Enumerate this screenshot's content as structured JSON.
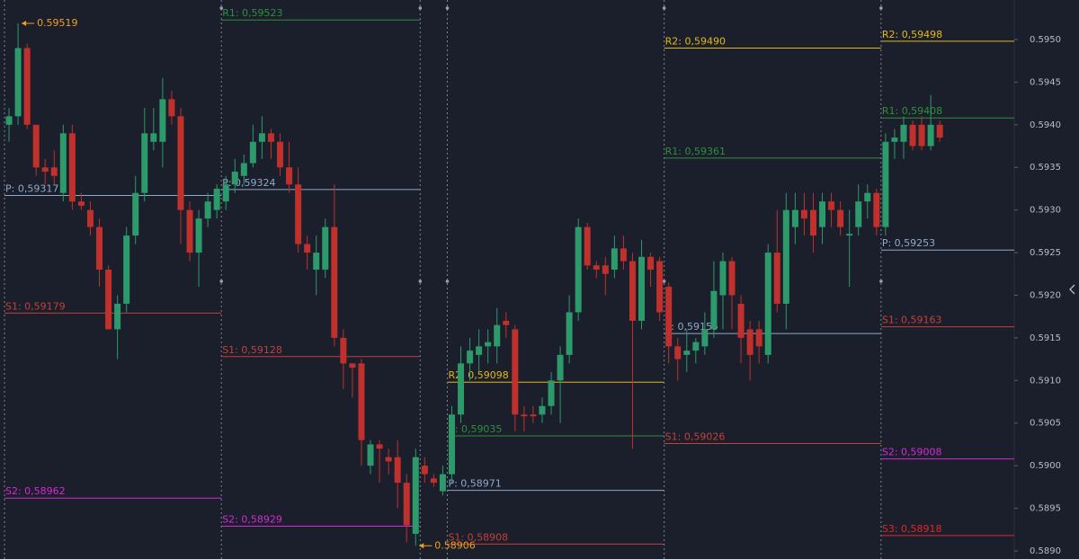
{
  "chart_data": {
    "type": "candlestick",
    "up_color": "#2c9a6a",
    "down_color": "#c0302c",
    "ylim": [
      0.588905,
      0.595464
    ],
    "yticks": [
      {
        "value": 0.595,
        "label": "0.5950"
      },
      {
        "value": 0.5945,
        "label": "0.5945"
      },
      {
        "value": 0.594,
        "label": "0.5940"
      },
      {
        "value": 0.5935,
        "label": "0.5935"
      },
      {
        "value": 0.593,
        "label": "0.5930"
      },
      {
        "value": 0.5925,
        "label": "0.5925"
      },
      {
        "value": 0.592,
        "label": "0.5920"
      },
      {
        "value": 0.5915,
        "label": "0.5915"
      },
      {
        "value": 0.591,
        "label": "0.5910"
      },
      {
        "value": 0.5905,
        "label": "0.5905"
      },
      {
        "value": 0.59,
        "label": "0.5900"
      },
      {
        "value": 0.5895,
        "label": "0.5895"
      },
      {
        "value": 0.589,
        "label": "0.5890"
      }
    ],
    "price_markers": [
      {
        "label": "0.59519",
        "value": 0.59519
      },
      {
        "label": "0.58906",
        "value": 0.58906
      }
    ],
    "sessions": [
      {
        "levels": [
          {
            "label": "P: 0,59317",
            "value": 0.59317,
            "color": "#8fa9c9"
          },
          {
            "label": "S1: 0,59179",
            "value": 0.59179,
            "color": "#c2413a"
          },
          {
            "label": "S2: 0,58962",
            "value": 0.58962,
            "color": "#d42ad4"
          }
        ],
        "candles": [
          [
            0.594,
            0.5942,
            0.5938,
            0.5941
          ],
          [
            0.5941,
            0.59519,
            0.594,
            0.5949
          ],
          [
            0.5949,
            0.59495,
            0.59395,
            0.594
          ],
          [
            0.594,
            0.594,
            0.5934,
            0.5935
          ],
          [
            0.5935,
            0.5936,
            0.5933,
            0.59345
          ],
          [
            0.5935,
            0.5937,
            0.5933,
            0.5934
          ],
          [
            0.5932,
            0.594,
            0.5931,
            0.5939
          ],
          [
            0.5939,
            0.594,
            0.593,
            0.5931
          ],
          [
            0.5931,
            0.5932,
            0.593,
            0.59305
          ],
          [
            0.593,
            0.5931,
            0.5927,
            0.5928
          ],
          [
            0.5928,
            0.5929,
            0.5921,
            0.5923
          ],
          [
            0.5923,
            0.59235,
            0.5916,
            0.5916
          ],
          [
            0.5916,
            0.592,
            0.59125,
            0.5919
          ],
          [
            0.5919,
            0.5928,
            0.5918,
            0.5927
          ],
          [
            0.5927,
            0.5934,
            0.5926,
            0.5932
          ],
          [
            0.5932,
            0.5942,
            0.5931,
            0.5939
          ],
          [
            0.5938,
            0.5942,
            0.5937,
            0.5939
          ],
          [
            0.5938,
            0.59455,
            0.5935,
            0.5943
          ],
          [
            0.5943,
            0.5944,
            0.594,
            0.5941
          ],
          [
            0.5941,
            0.5942,
            0.5926,
            0.593
          ],
          [
            0.593,
            0.5931,
            0.5924,
            0.5925
          ],
          [
            0.5925,
            0.593,
            0.5921,
            0.5929
          ],
          [
            0.5929,
            0.5932,
            0.5928,
            0.5931
          ],
          [
            0.593,
            0.5933,
            0.5929,
            0.59325
          ]
        ]
      },
      {
        "levels": [
          {
            "label": "R1: 0,59523",
            "value": 0.59523,
            "color": "#2f8f3c"
          },
          {
            "label": "P: 0,59324",
            "value": 0.59324,
            "color": "#8fa9c9"
          },
          {
            "label": "S1: 0,59128",
            "value": 0.59128,
            "color": "#c2413a"
          },
          {
            "label": "S2: 0,58929",
            "value": 0.58929,
            "color": "#d42ad4"
          }
        ],
        "candles": [
          [
            0.5931,
            0.5934,
            0.593,
            0.5933
          ],
          [
            0.5933,
            0.5936,
            0.5932,
            0.59345
          ],
          [
            0.5934,
            0.59365,
            0.5933,
            0.59355
          ],
          [
            0.59355,
            0.594,
            0.5935,
            0.5938
          ],
          [
            0.5938,
            0.5941,
            0.5936,
            0.5939
          ],
          [
            0.5939,
            0.59395,
            0.5936,
            0.5938
          ],
          [
            0.5938,
            0.5939,
            0.5934,
            0.5935
          ],
          [
            0.5935,
            0.5938,
            0.5932,
            0.5933
          ],
          [
            0.5933,
            0.5935,
            0.5925,
            0.5926
          ],
          [
            0.5926,
            0.5927,
            0.5923,
            0.5925
          ],
          [
            0.5923,
            0.5927,
            0.592,
            0.5925
          ],
          [
            0.5923,
            0.5929,
            0.5922,
            0.5928
          ],
          [
            0.5928,
            0.5933,
            0.5914,
            0.5915
          ],
          [
            0.5915,
            0.5916,
            0.5909,
            0.5912
          ],
          [
            0.5912,
            0.5912,
            0.5908,
            0.59115
          ],
          [
            0.5912,
            0.59125,
            0.59,
            0.5903
          ],
          [
            0.59,
            0.5903,
            0.5899,
            0.59025
          ],
          [
            0.59025,
            0.5903,
            0.5898,
            0.5902
          ],
          [
            0.5901,
            0.5902,
            0.5899,
            0.59005
          ],
          [
            0.5901,
            0.5903,
            0.5895,
            0.5898
          ],
          [
            0.5898,
            0.5899,
            0.5891,
            0.5893
          ],
          [
            0.5892,
            0.5902,
            0.58906,
            0.5901
          ]
        ]
      },
      {
        "levels": [],
        "candles": [
          [
            0.59,
            0.5901,
            0.5898,
            0.5899
          ],
          [
            0.58985,
            0.5899,
            0.58975,
            0.5898
          ],
          [
            0.5897,
            0.59,
            0.58965,
            0.5899
          ]
        ]
      },
      {
        "levels": [
          {
            "label": "R2: 0,59098",
            "value": 0.59098,
            "color": "#e3b81c"
          },
          {
            "label": "R: 0,59035",
            "value": 0.59035,
            "color": "#2f8f3c"
          },
          {
            "label": "P: 0,58971",
            "value": 0.58971,
            "color": "#8fa9c9"
          },
          {
            "label": "S1: 0,58908",
            "value": 0.58908,
            "color": "#c2413a"
          }
        ],
        "candles": [
          [
            0.5899,
            0.5907,
            0.5898,
            0.5906
          ],
          [
            0.5906,
            0.5914,
            0.5905,
            0.5912
          ],
          [
            0.5912,
            0.5915,
            0.591,
            0.59135
          ],
          [
            0.5913,
            0.5916,
            0.5911,
            0.5914
          ],
          [
            0.5914,
            0.5916,
            0.5912,
            0.59145
          ],
          [
            0.5914,
            0.59185,
            0.5912,
            0.59165
          ],
          [
            0.5917,
            0.5918,
            0.5915,
            0.59165
          ],
          [
            0.5916,
            0.59165,
            0.5904,
            0.5906
          ],
          [
            0.5906,
            0.5907,
            0.5904,
            0.59058
          ],
          [
            0.5906,
            0.5907,
            0.5905,
            0.59058
          ],
          [
            0.5906,
            0.5908,
            0.5905,
            0.5907
          ],
          [
            0.5907,
            0.5911,
            0.5906,
            0.591
          ],
          [
            0.591,
            0.5914,
            0.5905,
            0.5913
          ],
          [
            0.5913,
            0.592,
            0.5912,
            0.5918
          ],
          [
            0.5918,
            0.5929,
            0.5917,
            0.5928
          ],
          [
            0.5928,
            0.59285,
            0.5923,
            0.59235
          ],
          [
            0.59235,
            0.5924,
            0.5922,
            0.5923
          ],
          [
            0.59235,
            0.59245,
            0.592,
            0.59225
          ],
          [
            0.5923,
            0.5927,
            0.5922,
            0.59255
          ],
          [
            0.59255,
            0.5927,
            0.5923,
            0.5924
          ],
          [
            0.5924,
            0.5925,
            0.5902,
            0.5917
          ],
          [
            0.5917,
            0.59265,
            0.5916,
            0.59245
          ],
          [
            0.59245,
            0.5925,
            0.5921,
            0.5923
          ],
          [
            0.5924,
            0.59245,
            0.5917,
            0.5918
          ]
        ]
      },
      {
        "levels": [
          {
            "label": "R2: 0,59490",
            "value": 0.5949,
            "color": "#e3b81c"
          },
          {
            "label": "R1: 0,59361",
            "value": 0.59361,
            "color": "#2f8f3c"
          },
          {
            "label": "P: 0,59155",
            "value": 0.59155,
            "color": "#8fa9c9"
          },
          {
            "label": "S1: 0,59026",
            "value": 0.59026,
            "color": "#c2413a"
          }
        ],
        "candles": [
          [
            0.5921,
            0.59215,
            0.5912,
            0.5914
          ],
          [
            0.5914,
            0.5915,
            0.591,
            0.59125
          ],
          [
            0.5913,
            0.5916,
            0.5911,
            0.59135
          ],
          [
            0.59135,
            0.5915,
            0.5912,
            0.59145
          ],
          [
            0.5914,
            0.5918,
            0.5913,
            0.5916
          ],
          [
            0.5916,
            0.5924,
            0.5915,
            0.59205
          ],
          [
            0.592,
            0.5925,
            0.5916,
            0.5924
          ],
          [
            0.5924,
            0.59245,
            0.5916,
            0.592
          ],
          [
            0.5919,
            0.592,
            0.5912,
            0.5915
          ],
          [
            0.5916,
            0.5917,
            0.591,
            0.5913
          ],
          [
            0.5916,
            0.5917,
            0.5912,
            0.5914
          ],
          [
            0.5913,
            0.5926,
            0.5912,
            0.5925
          ],
          [
            0.5925,
            0.593,
            0.5918,
            0.5919
          ],
          [
            0.5919,
            0.5932,
            0.5916,
            0.593
          ],
          [
            0.5928,
            0.5932,
            0.5926,
            0.593
          ],
          [
            0.593,
            0.5932,
            0.5927,
            0.5929
          ],
          [
            0.593,
            0.5932,
            0.5925,
            0.5927
          ],
          [
            0.5928,
            0.5932,
            0.5926,
            0.5931
          ],
          [
            0.5931,
            0.5932,
            0.5928,
            0.593
          ],
          [
            0.593,
            0.5931,
            0.5927,
            0.5928
          ],
          [
            0.5927,
            0.593,
            0.5921,
            0.59272
          ],
          [
            0.5928,
            0.5933,
            0.5927,
            0.5931
          ],
          [
            0.5931,
            0.5933,
            0.5929,
            0.5932
          ],
          [
            0.5932,
            0.59325,
            0.5927,
            0.5928
          ]
        ]
      },
      {
        "levels": [
          {
            "label": "R2: 0,59498",
            "value": 0.59498,
            "color": "#e3b81c"
          },
          {
            "label": "R1: 0,59408",
            "value": 0.59408,
            "color": "#2f8f3c"
          },
          {
            "label": "P: 0,59253",
            "value": 0.59253,
            "color": "#8fa9c9"
          },
          {
            "label": "S1: 0,59163",
            "value": 0.59163,
            "color": "#c2413a"
          },
          {
            "label": "S2: 0,59008",
            "value": 0.59008,
            "color": "#d42ad4"
          },
          {
            "label": "S3: 0,58918",
            "value": 0.58918,
            "color": "#e0262a"
          }
        ],
        "candles": [
          [
            0.5928,
            0.5939,
            0.5927,
            0.5938
          ],
          [
            0.5938,
            0.59395,
            0.5936,
            0.59385
          ],
          [
            0.5938,
            0.5941,
            0.5936,
            0.594
          ],
          [
            0.594,
            0.59405,
            0.5937,
            0.59375
          ],
          [
            0.594,
            0.5941,
            0.5937,
            0.59375
          ],
          [
            0.59375,
            0.59435,
            0.5937,
            0.594
          ],
          [
            0.594,
            0.59405,
            0.5938,
            0.59385
          ]
        ]
      }
    ]
  }
}
